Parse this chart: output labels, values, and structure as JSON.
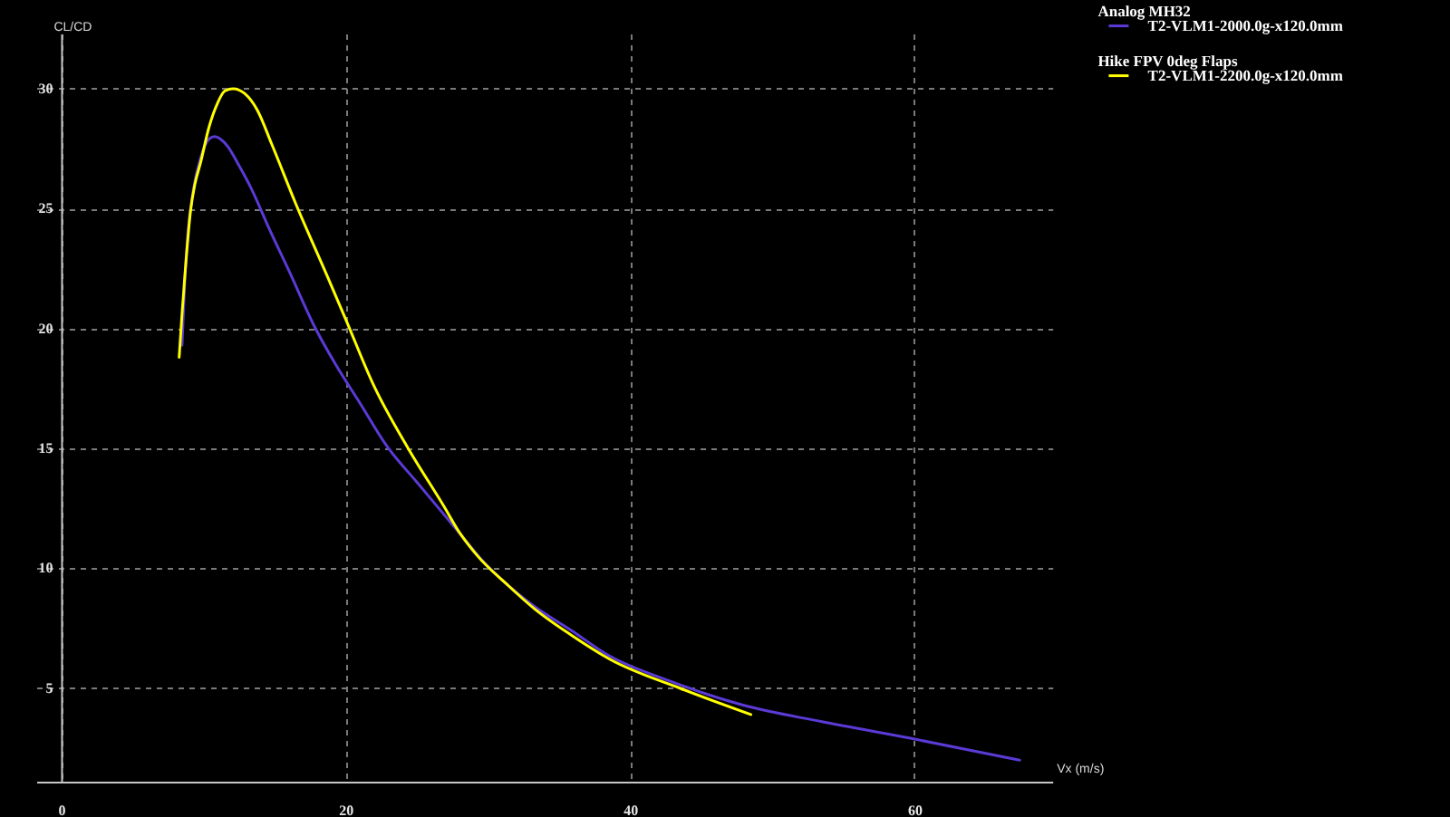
{
  "chart_data": {
    "type": "line",
    "xlabel": "Vx (m/s)",
    "ylabel": "CL/CD",
    "xlim": [
      -1.75,
      69.7
    ],
    "ylim": [
      1.1,
      32.3
    ],
    "xticks": [
      0,
      20,
      40,
      60
    ],
    "yticks": [
      5,
      10,
      15,
      20,
      25,
      30
    ],
    "grid": true,
    "legend": "top right",
    "annotations": [
      "Analog MH32",
      "Hike FPV 0deg Flaps"
    ],
    "series": [
      {
        "name": "T2-VLM1-2000.0g-x120.0mm",
        "color": "#5b3ad6",
        "x": [
          8.5,
          8.7,
          8.9,
          9.3,
          9.8,
          10.4,
          10.8,
          11.2,
          11.7,
          12.5,
          13.4,
          14.6,
          16.1,
          17.8,
          19.3,
          21.0,
          22.9,
          25.0,
          26.7,
          28.1,
          29.5,
          31.4,
          33.3,
          35.9,
          38.4,
          42.8,
          47.9,
          53.5,
          59.8,
          67.4
        ],
        "values": [
          19.3,
          22.0,
          23.9,
          25.8,
          27.1,
          27.9,
          28.0,
          27.9,
          27.6,
          26.8,
          25.8,
          24.2,
          22.3,
          20.1,
          18.5,
          16.9,
          15.1,
          13.6,
          12.4,
          11.4,
          10.4,
          9.3,
          8.4,
          7.4,
          6.4,
          5.3,
          4.3,
          3.6,
          2.9,
          2.0
        ]
      },
      {
        "name": "T2-VLM1-2200.0g-x120.0mm",
        "color": "#ffff00",
        "x": [
          8.3,
          8.5,
          8.7,
          9.1,
          9.4,
          9.8,
          10.4,
          11.0,
          11.5,
          12.1,
          12.9,
          13.8,
          14.8,
          16.5,
          18.7,
          20.0,
          22.0,
          24.4,
          26.9,
          28.0,
          29.3,
          31.4,
          33.3,
          35.9,
          38.6,
          43.5,
          48.5
        ],
        "values": [
          18.8,
          20.6,
          22.2,
          24.9,
          26.0,
          26.9,
          28.4,
          29.4,
          29.9,
          30.0,
          29.8,
          29.1,
          27.7,
          25.2,
          22.2,
          20.4,
          17.6,
          15.0,
          12.6,
          11.5,
          10.5,
          9.3,
          8.3,
          7.2,
          6.2,
          5.0,
          3.9
        ]
      }
    ]
  }
}
